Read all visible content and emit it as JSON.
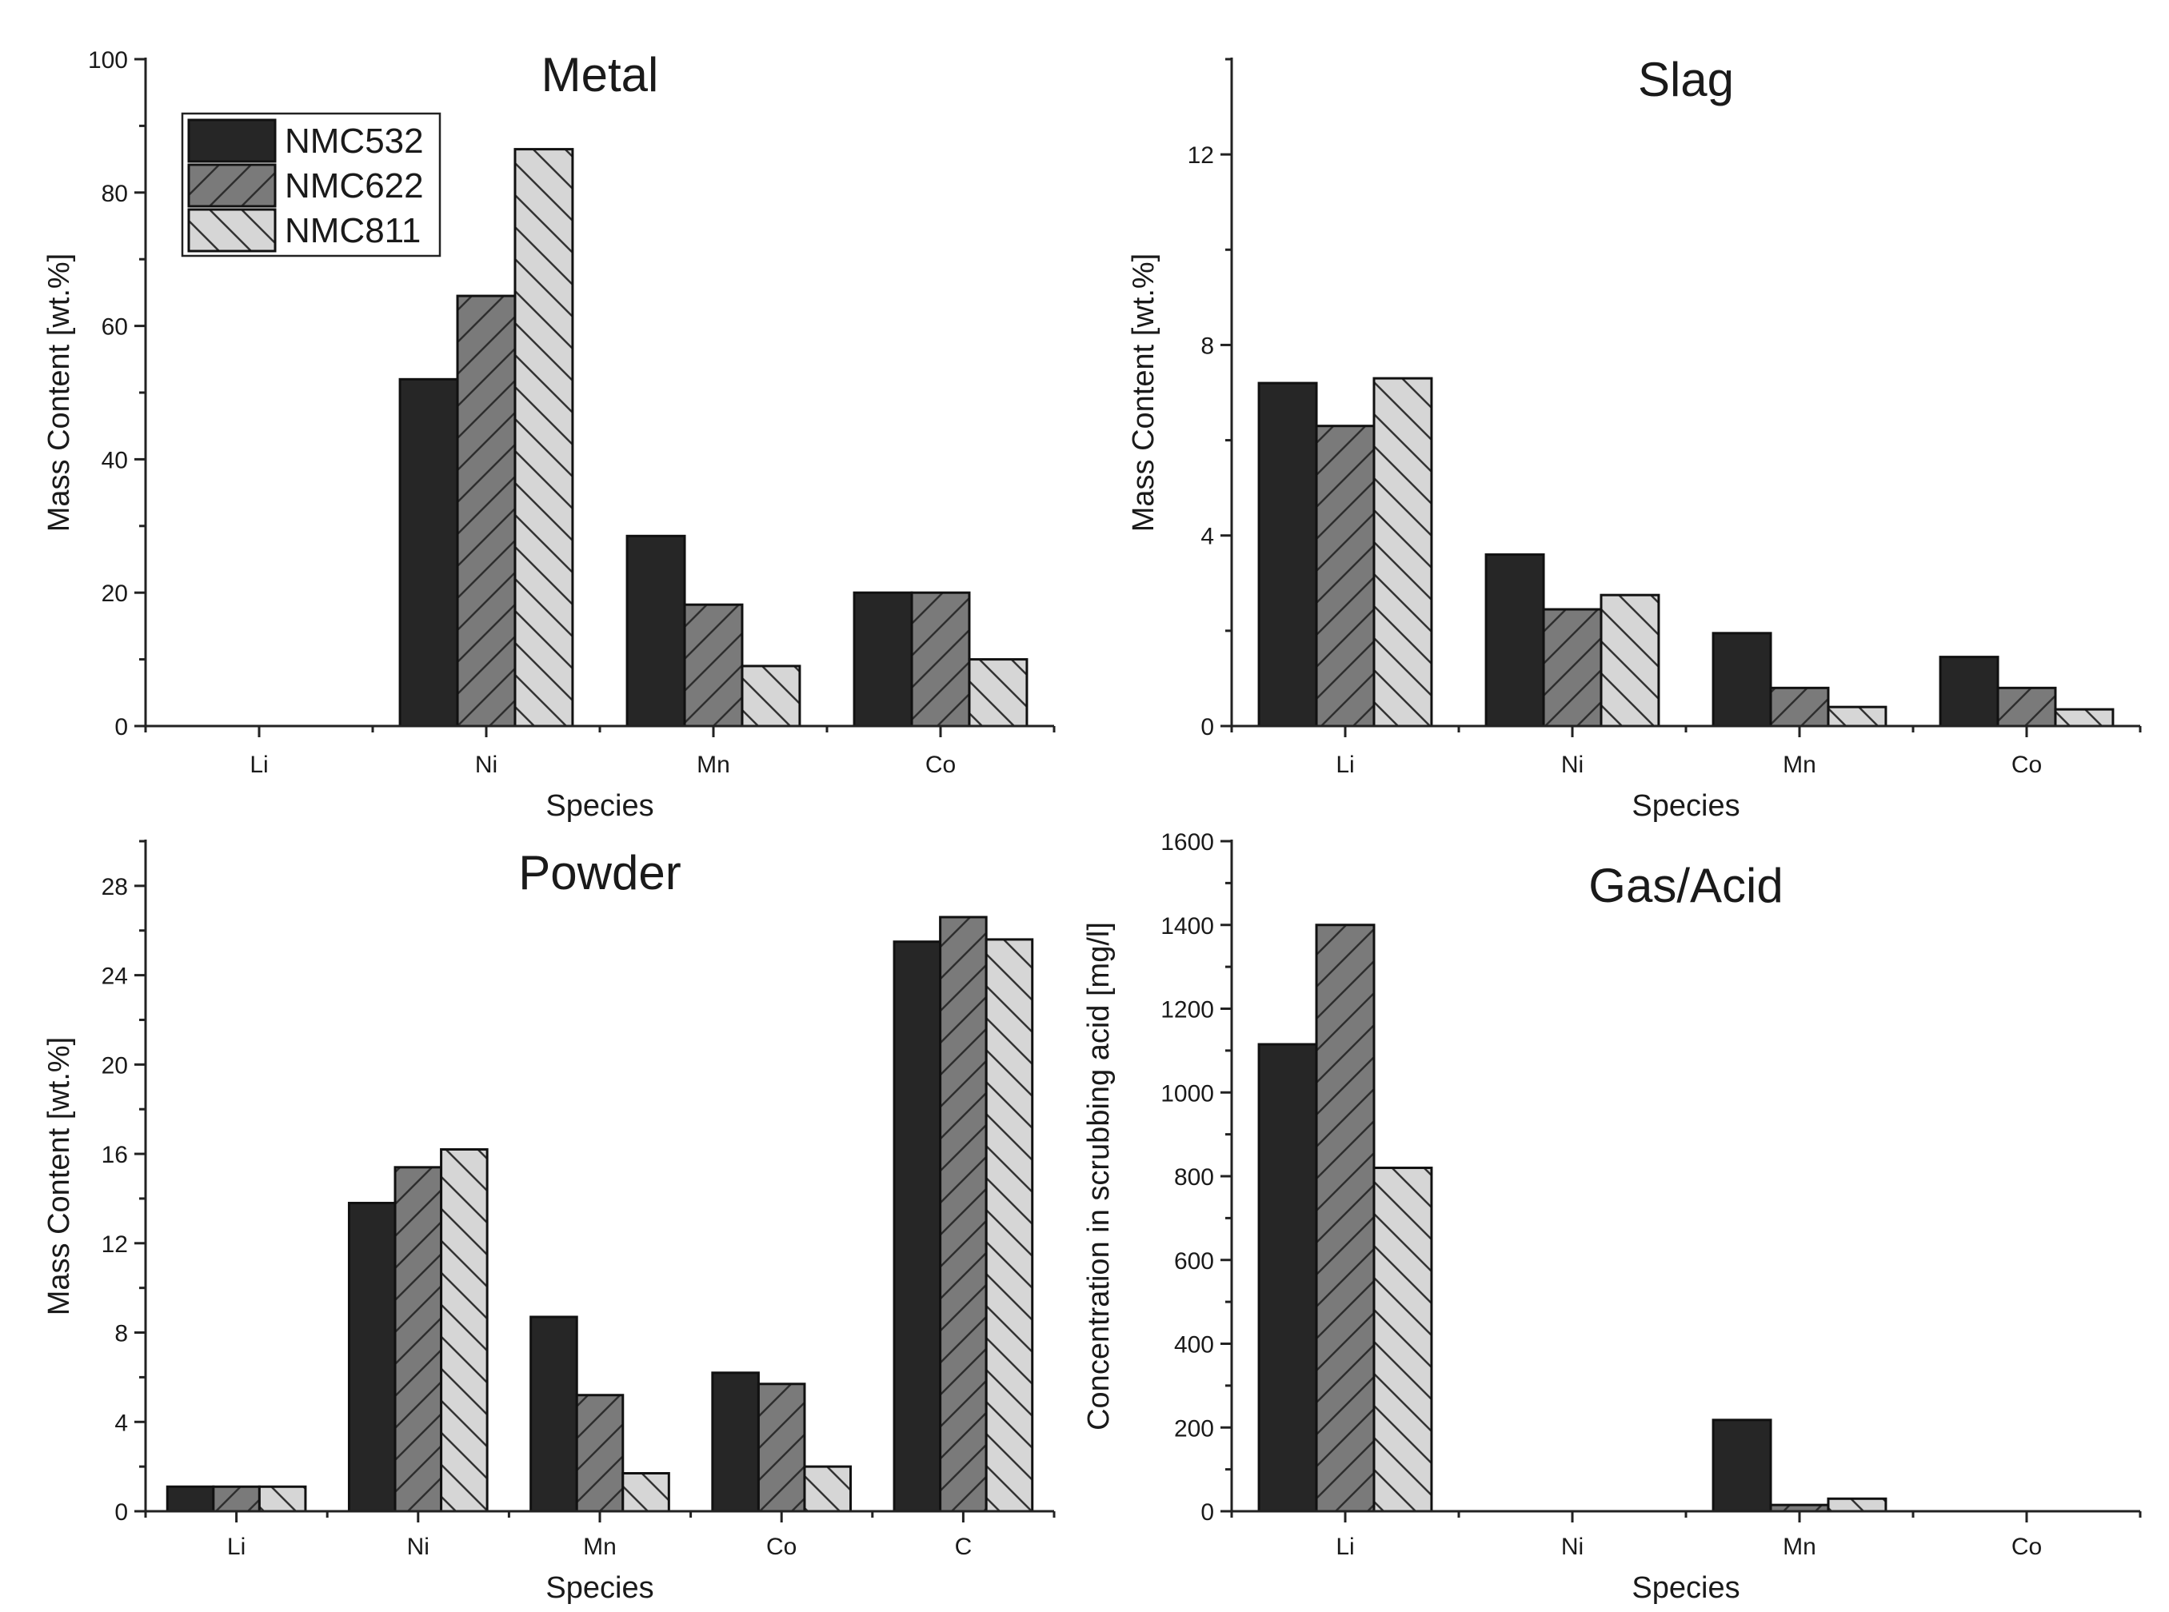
{
  "legend": {
    "entries": [
      "NMC532",
      "NMC622",
      "NMC811"
    ]
  },
  "series_style": {
    "NMC532": {
      "fill": "#262626",
      "pattern": "solid"
    },
    "NMC622": {
      "fill": "#7a7a7a",
      "pattern": "forward-diagonal"
    },
    "NMC811": {
      "fill": "#d6d6d6",
      "pattern": "backward-diagonal"
    }
  },
  "chart_data": [
    {
      "type": "bar",
      "title": "Metal",
      "xlabel": "Species",
      "ylabel": "Mass Content [wt.%]",
      "categories": [
        "Li",
        "Ni",
        "Mn",
        "Co"
      ],
      "ylim": [
        0,
        100
      ],
      "yticks": [
        0,
        20,
        40,
        60,
        80,
        100
      ],
      "yminor": 10,
      "legend_position": "top-left",
      "series": [
        {
          "name": "NMC532",
          "values": [
            0,
            52,
            28.5,
            20
          ]
        },
        {
          "name": "NMC622",
          "values": [
            0,
            64.5,
            18.2,
            20
          ]
        },
        {
          "name": "NMC811",
          "values": [
            0,
            86.5,
            9,
            10
          ]
        }
      ]
    },
    {
      "type": "bar",
      "title": "Slag",
      "xlabel": "Species",
      "ylabel": "Mass Content [wt.%]",
      "categories": [
        "Li",
        "Ni",
        "Mn",
        "Co"
      ],
      "ylim": [
        0,
        14
      ],
      "yticks": [
        0,
        4,
        8,
        12
      ],
      "yminor": 2,
      "series": [
        {
          "name": "NMC532",
          "values": [
            7.2,
            3.6,
            1.95,
            1.45
          ]
        },
        {
          "name": "NMC622",
          "values": [
            6.3,
            2.45,
            0.8,
            0.8
          ]
        },
        {
          "name": "NMC811",
          "values": [
            7.3,
            2.75,
            0.4,
            0.35
          ]
        }
      ]
    },
    {
      "type": "bar",
      "title": "Powder",
      "xlabel": "Species",
      "ylabel": "Mass Content [wt.%]",
      "categories": [
        "Li",
        "Ni",
        "Mn",
        "Co",
        "C"
      ],
      "ylim": [
        0,
        30
      ],
      "yticks": [
        0,
        4,
        8,
        12,
        16,
        20,
        24,
        28
      ],
      "yminor": 2,
      "series": [
        {
          "name": "NMC532",
          "values": [
            1.1,
            13.8,
            8.7,
            6.2,
            25.5
          ]
        },
        {
          "name": "NMC622",
          "values": [
            1.1,
            15.4,
            5.2,
            5.7,
            26.6
          ]
        },
        {
          "name": "NMC811",
          "values": [
            1.1,
            16.2,
            1.7,
            2.0,
            25.6
          ]
        }
      ]
    },
    {
      "type": "bar",
      "title": "Gas/Acid",
      "xlabel": "Species",
      "ylabel": "Concentration in scrubbing acid [mg/l]",
      "categories": [
        "Li",
        "Ni",
        "Mn",
        "Co"
      ],
      "ylim": [
        0,
        1600
      ],
      "yticks": [
        0,
        200,
        400,
        600,
        800,
        1000,
        1200,
        1400,
        1600
      ],
      "yminor": 100,
      "series": [
        {
          "name": "NMC532",
          "values": [
            1115,
            0,
            218,
            0
          ]
        },
        {
          "name": "NMC622",
          "values": [
            1400,
            0,
            15,
            0
          ]
        },
        {
          "name": "NMC811",
          "values": [
            820,
            0,
            30,
            0
          ]
        }
      ]
    }
  ]
}
